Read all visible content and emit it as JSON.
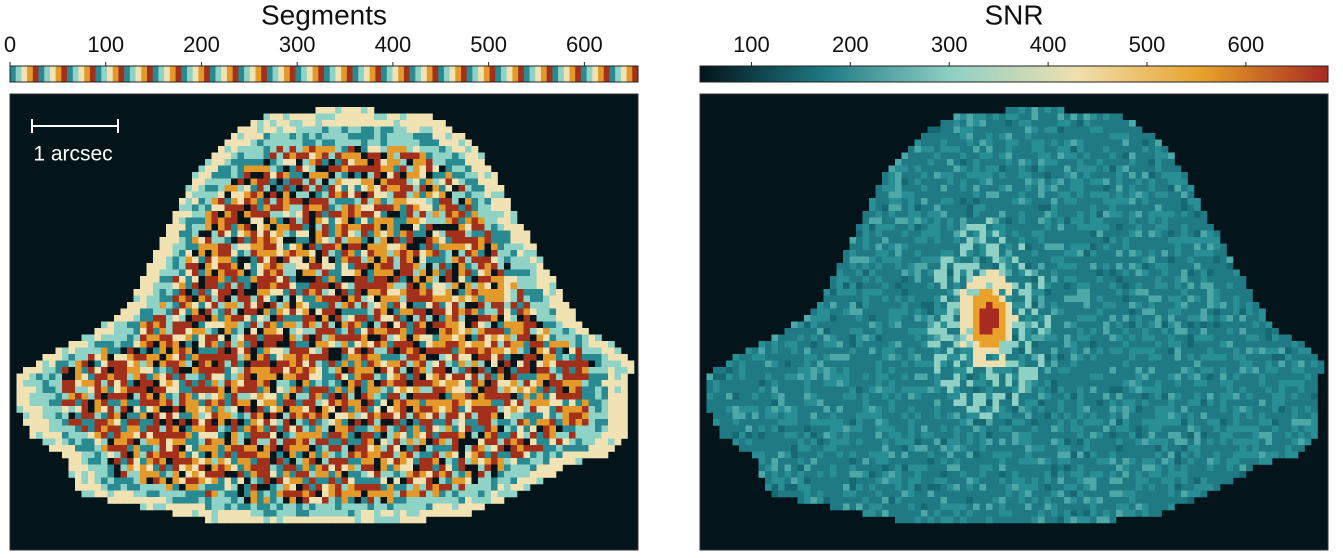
{
  "chart_data": [
    {
      "type": "segment-map",
      "title": "Segments",
      "xlim": [
        0,
        656
      ],
      "xticks": [
        0,
        100,
        200,
        300,
        400,
        500,
        600
      ],
      "colors": [
        "#03141b",
        "#2a8a92",
        "#8fd3c6",
        "#f1e2b4",
        "#e39a2a",
        "#a3301b"
      ],
      "background": "#03141b",
      "scale_bar_label": "1 arcsec"
    },
    {
      "type": "snr-map",
      "title": "SNR",
      "xlim": [
        48,
        683
      ],
      "xticks": [
        100,
        200,
        300,
        400,
        500,
        600
      ],
      "colors": [
        "#03141b",
        "#1f7a84",
        "#8ed0c4",
        "#f0dfae",
        "#e8a12a",
        "#a82a22"
      ],
      "background": "#03141b"
    }
  ]
}
